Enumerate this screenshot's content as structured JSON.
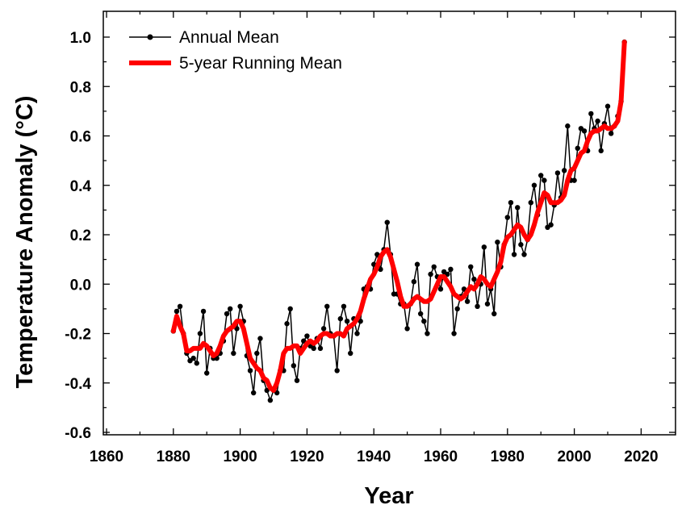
{
  "chart_data": {
    "type": "line",
    "xlabel": "Year",
    "ylabel": "Temperature Anomaly (°C)",
    "xlim": [
      1860,
      2030
    ],
    "ylim": [
      -0.6,
      1.05
    ],
    "x_ticks": [
      1860,
      1880,
      1900,
      1920,
      1940,
      1960,
      1980,
      2000,
      2020
    ],
    "x_tick_labels": [
      "1860",
      "1880",
      "1900",
      "1920",
      "1940",
      "1960",
      "1980",
      "2000",
      "2020"
    ],
    "y_ticks": [
      -0.6,
      -0.4,
      -0.2,
      0.0,
      0.2,
      0.4,
      0.6,
      0.8,
      1.0
    ],
    "y_tick_labels": [
      "-0.6",
      "-0.4",
      "-0.2",
      "0.0",
      "0.2",
      "0.4",
      "0.6",
      "0.8",
      "1.0"
    ],
    "grid": false,
    "legend_position": "top-left",
    "series": [
      {
        "name": "Annual Mean",
        "style": "line-with-markers",
        "color": "#000000",
        "x": [
          1880,
          1881,
          1882,
          1883,
          1884,
          1885,
          1886,
          1887,
          1888,
          1889,
          1890,
          1891,
          1892,
          1893,
          1894,
          1895,
          1896,
          1897,
          1898,
          1899,
          1900,
          1901,
          1902,
          1903,
          1904,
          1905,
          1906,
          1907,
          1908,
          1909,
          1910,
          1911,
          1912,
          1913,
          1914,
          1915,
          1916,
          1917,
          1918,
          1919,
          1920,
          1921,
          1922,
          1923,
          1924,
          1925,
          1926,
          1927,
          1928,
          1929,
          1930,
          1931,
          1932,
          1933,
          1934,
          1935,
          1936,
          1937,
          1938,
          1939,
          1940,
          1941,
          1942,
          1943,
          1944,
          1945,
          1946,
          1947,
          1948,
          1949,
          1950,
          1951,
          1952,
          1953,
          1954,
          1955,
          1956,
          1957,
          1958,
          1959,
          1960,
          1961,
          1962,
          1963,
          1964,
          1965,
          1966,
          1967,
          1968,
          1969,
          1970,
          1971,
          1972,
          1973,
          1974,
          1975,
          1976,
          1977,
          1978,
          1979,
          1980,
          1981,
          1982,
          1983,
          1984,
          1985,
          1986,
          1987,
          1988,
          1989,
          1990,
          1991,
          1992,
          1993,
          1994,
          1995,
          1996,
          1997,
          1998,
          1999,
          2000,
          2001,
          2002,
          2003,
          2004,
          2005,
          2006,
          2007,
          2008,
          2009,
          2010,
          2011,
          2012,
          2013,
          2014,
          2015
        ],
        "y": [
          -0.19,
          -0.11,
          -0.09,
          -0.2,
          -0.28,
          -0.31,
          -0.3,
          -0.32,
          -0.2,
          -0.11,
          -0.36,
          -0.26,
          -0.3,
          -0.3,
          -0.28,
          -0.23,
          -0.12,
          -0.1,
          -0.28,
          -0.18,
          -0.09,
          -0.15,
          -0.29,
          -0.35,
          -0.44,
          -0.28,
          -0.22,
          -0.39,
          -0.43,
          -0.47,
          -0.43,
          -0.44,
          -0.35,
          -0.35,
          -0.16,
          -0.1,
          -0.33,
          -0.39,
          -0.26,
          -0.23,
          -0.21,
          -0.25,
          -0.26,
          -0.22,
          -0.26,
          -0.18,
          -0.09,
          -0.2,
          -0.21,
          -0.35,
          -0.14,
          -0.09,
          -0.15,
          -0.28,
          -0.14,
          -0.2,
          -0.15,
          -0.02,
          -0.01,
          -0.02,
          0.08,
          0.12,
          0.06,
          0.14,
          0.25,
          0.12,
          -0.04,
          -0.04,
          -0.08,
          -0.08,
          -0.18,
          -0.08,
          0.01,
          0.08,
          -0.12,
          -0.15,
          -0.2,
          0.04,
          0.07,
          0.03,
          -0.02,
          0.05,
          0.04,
          0.06,
          -0.2,
          -0.1,
          -0.05,
          -0.02,
          -0.07,
          0.07,
          0.02,
          -0.09,
          0.0,
          0.15,
          -0.08,
          -0.02,
          -0.12,
          0.17,
          0.07,
          0.16,
          0.27,
          0.33,
          0.12,
          0.31,
          0.16,
          0.12,
          0.18,
          0.33,
          0.4,
          0.28,
          0.44,
          0.42,
          0.23,
          0.24,
          0.32,
          0.45,
          0.35,
          0.46,
          0.64,
          0.42,
          0.42,
          0.55,
          0.63,
          0.62,
          0.54,
          0.69,
          0.63,
          0.66,
          0.54,
          0.65,
          0.72,
          0.61,
          0.64,
          0.68,
          0.74,
          0.98
        ]
      },
      {
        "name": "5-year Running Mean",
        "style": "thick-line",
        "color": "#ff0000",
        "x": [
          1880,
          1881,
          1882,
          1883,
          1884,
          1885,
          1886,
          1887,
          1888,
          1889,
          1890,
          1891,
          1892,
          1893,
          1894,
          1895,
          1896,
          1897,
          1898,
          1899,
          1900,
          1901,
          1902,
          1903,
          1904,
          1905,
          1906,
          1907,
          1908,
          1909,
          1910,
          1911,
          1912,
          1913,
          1914,
          1915,
          1916,
          1917,
          1918,
          1919,
          1920,
          1921,
          1922,
          1923,
          1924,
          1925,
          1926,
          1927,
          1928,
          1929,
          1930,
          1931,
          1932,
          1933,
          1934,
          1935,
          1936,
          1937,
          1938,
          1939,
          1940,
          1941,
          1942,
          1943,
          1944,
          1945,
          1946,
          1947,
          1948,
          1949,
          1950,
          1951,
          1952,
          1953,
          1954,
          1955,
          1956,
          1957,
          1958,
          1959,
          1960,
          1961,
          1962,
          1963,
          1964,
          1965,
          1966,
          1967,
          1968,
          1969,
          1970,
          1971,
          1972,
          1973,
          1974,
          1975,
          1976,
          1977,
          1978,
          1979,
          1980,
          1981,
          1982,
          1983,
          1984,
          1985,
          1986,
          1987,
          1988,
          1989,
          1990,
          1991,
          1992,
          1993,
          1994,
          1995,
          1996,
          1997,
          1998,
          1999,
          2000,
          2001,
          2002,
          2003,
          2004,
          2005,
          2006,
          2007,
          2008,
          2009,
          2010,
          2011,
          2012,
          2013,
          2014,
          2015
        ],
        "y": [
          -0.19,
          -0.13,
          -0.17,
          -0.2,
          -0.27,
          -0.27,
          -0.26,
          -0.26,
          -0.26,
          -0.24,
          -0.25,
          -0.27,
          -0.29,
          -0.28,
          -0.25,
          -0.21,
          -0.19,
          -0.18,
          -0.17,
          -0.15,
          -0.15,
          -0.18,
          -0.24,
          -0.3,
          -0.32,
          -0.34,
          -0.35,
          -0.38,
          -0.39,
          -0.42,
          -0.43,
          -0.4,
          -0.35,
          -0.28,
          -0.26,
          -0.26,
          -0.25,
          -0.25,
          -0.28,
          -0.26,
          -0.24,
          -0.23,
          -0.24,
          -0.23,
          -0.21,
          -0.2,
          -0.2,
          -0.21,
          -0.21,
          -0.2,
          -0.2,
          -0.21,
          -0.18,
          -0.17,
          -0.16,
          -0.14,
          -0.11,
          -0.06,
          -0.02,
          0.02,
          0.04,
          0.07,
          0.11,
          0.13,
          0.14,
          0.11,
          0.06,
          0.01,
          -0.05,
          -0.09,
          -0.09,
          -0.08,
          -0.06,
          -0.05,
          -0.06,
          -0.07,
          -0.07,
          -0.06,
          -0.03,
          0.0,
          0.03,
          0.03,
          0.01,
          -0.01,
          -0.04,
          -0.05,
          -0.06,
          -0.05,
          -0.03,
          -0.01,
          -0.02,
          0.0,
          0.03,
          0.02,
          0.0,
          -0.01,
          0.02,
          0.05,
          0.09,
          0.16,
          0.19,
          0.2,
          0.22,
          0.24,
          0.23,
          0.2,
          0.18,
          0.2,
          0.24,
          0.29,
          0.33,
          0.37,
          0.36,
          0.33,
          0.33,
          0.33,
          0.34,
          0.36,
          0.42,
          0.46,
          0.47,
          0.5,
          0.53,
          0.54,
          0.58,
          0.61,
          0.62,
          0.62,
          0.63,
          0.64,
          0.63,
          0.63,
          0.64,
          0.66,
          0.74,
          0.98
        ]
      }
    ]
  }
}
